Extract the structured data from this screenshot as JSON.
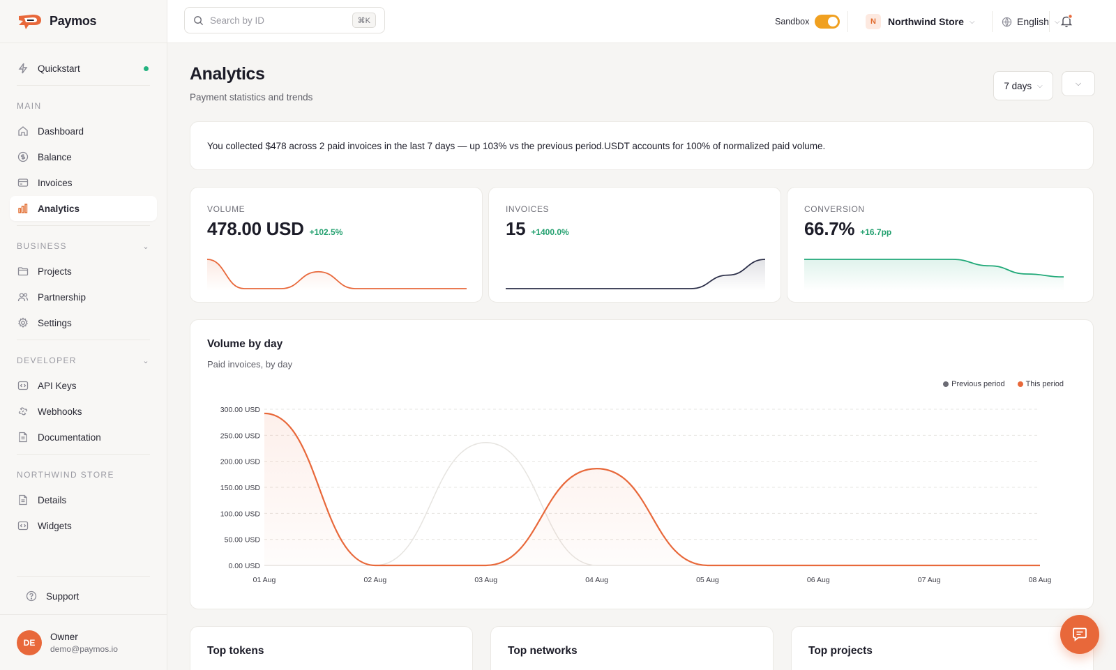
{
  "app": {
    "name": "Paymos"
  },
  "search": {
    "placeholder": "Search by ID",
    "shortcut": "⌘K"
  },
  "topbar": {
    "sandbox_label": "Sandbox",
    "sandbox_on": true,
    "store_initial": "N",
    "store_name": "Northwind Store",
    "language": "English"
  },
  "sidebar": {
    "quickstart": "Quickstart",
    "sections": [
      {
        "title": "MAIN",
        "items": [
          {
            "label": "Dashboard",
            "icon": "home-icon"
          },
          {
            "label": "Balance",
            "icon": "dollar-icon"
          },
          {
            "label": "Invoices",
            "icon": "invoice-icon"
          },
          {
            "label": "Analytics",
            "icon": "bar-chart-icon",
            "active": true
          }
        ]
      },
      {
        "title": "BUSINESS",
        "items": [
          {
            "label": "Projects",
            "icon": "folder-icon"
          },
          {
            "label": "Partnership",
            "icon": "users-icon"
          },
          {
            "label": "Settings",
            "icon": "gear-icon"
          }
        ]
      },
      {
        "title": "DEVELOPER",
        "items": [
          {
            "label": "API Keys",
            "icon": "code-icon"
          },
          {
            "label": "Webhooks",
            "icon": "link-icon"
          },
          {
            "label": "Documentation",
            "icon": "document-icon"
          }
        ]
      },
      {
        "title": "NORTHWIND STORE",
        "items": [
          {
            "label": "Details",
            "icon": "document-icon"
          },
          {
            "label": "Widgets",
            "icon": "code-icon"
          }
        ]
      }
    ],
    "support": "Support",
    "user": {
      "initials": "DE",
      "role": "Owner",
      "email": "demo@paymos.io"
    }
  },
  "page": {
    "title": "Analytics",
    "subtitle": "Payment statistics and trends",
    "range": "7 days"
  },
  "summary": "You collected $478 across 2 paid invoices in the last 7 days — up 103% vs the previous period.USDT accounts for 100% of normalized paid volume.",
  "kpis": [
    {
      "label": "VOLUME",
      "value": "478.00 USD",
      "delta": "+102.5%",
      "color": "#e8683a",
      "spark": [
        45,
        0,
        0,
        26,
        0,
        0,
        0,
        0
      ]
    },
    {
      "label": "INVOICES",
      "value": "15",
      "delta": "+1400.0%",
      "color": "#2b2e48",
      "spark": [
        0,
        0,
        0,
        0,
        0,
        0,
        6,
        13
      ]
    },
    {
      "label": "CONVERSION",
      "value": "66.7%",
      "delta": "+16.7pp",
      "color": "#1fa877",
      "spark": [
        100,
        100,
        100,
        100,
        100,
        78,
        50,
        40
      ]
    }
  ],
  "colors": {
    "accent": "#e8683a",
    "previous": "#6b6b74",
    "positive": "#23a06f"
  },
  "chart_data": {
    "type": "line",
    "title": "Volume by day",
    "subtitle": "Paid invoices, by day",
    "categories": [
      "01 Aug",
      "02 Aug",
      "03 Aug",
      "04 Aug",
      "05 Aug",
      "06 Aug",
      "07 Aug",
      "08 Aug"
    ],
    "y_ticks": [
      "0.00 USD",
      "50.00 USD",
      "100.00 USD",
      "150.00 USD",
      "200.00 USD",
      "250.00 USD",
      "300.00 USD"
    ],
    "ylim": [
      0,
      300
    ],
    "series": [
      {
        "name": "Previous period",
        "color": "#6b6b74",
        "values": [
          0,
          0,
          236,
          0,
          0,
          0,
          0,
          0
        ]
      },
      {
        "name": "This period",
        "color": "#e8683a",
        "values": [
          292,
          0,
          0,
          186,
          0,
          0,
          0,
          0
        ]
      }
    ],
    "legend_position": "top-right",
    "grid": true
  },
  "bottom_cards": [
    "Top tokens",
    "Top networks",
    "Top projects"
  ]
}
